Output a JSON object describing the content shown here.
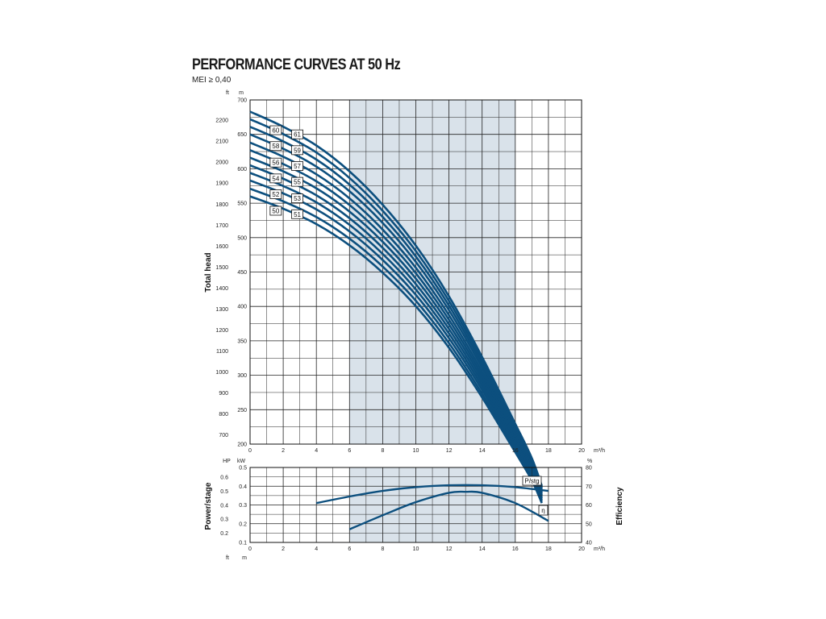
{
  "chart_data": [
    {
      "type": "line",
      "title": "PERFORMANCE CURVES AT 50 Hz",
      "subtitle": "MEI ≥ 0,40",
      "ylabel": "Total head",
      "y_unit_left": "ft",
      "y_unit_right": "m",
      "x_unit": "m³/h",
      "xlim": [
        0,
        20
      ],
      "ylim": [
        200,
        700
      ],
      "x_ticks": [
        0,
        2,
        4,
        6,
        8,
        10,
        12,
        14,
        16,
        18,
        20
      ],
      "y_ticks_m": [
        200,
        250,
        300,
        350,
        400,
        450,
        500,
        550,
        600,
        650,
        700
      ],
      "y_ticks_ft": [
        700,
        800,
        900,
        1000,
        1100,
        1200,
        1300,
        1400,
        1500,
        1600,
        1700,
        1800,
        1900,
        2000,
        2100,
        2200
      ],
      "grid": true,
      "shaded_x_range": [
        6,
        16
      ],
      "curve_x": [
        0,
        2,
        4,
        6,
        8,
        10,
        12,
        14,
        16,
        17,
        17.6
      ],
      "curve_fraction": [
        1.0,
        0.968,
        0.928,
        0.873,
        0.802,
        0.715,
        0.607,
        0.478,
        0.336,
        0.263,
        0.204
      ],
      "series": [
        {
          "name": "50",
          "shutoff_head": 560
        },
        {
          "name": "51",
          "shutoff_head": 571
        },
        {
          "name": "52",
          "shutoff_head": 583
        },
        {
          "name": "53",
          "shutoff_head": 594
        },
        {
          "name": "54",
          "shutoff_head": 605
        },
        {
          "name": "55",
          "shutoff_head": 616
        },
        {
          "name": "56",
          "shutoff_head": 627
        },
        {
          "name": "57",
          "shutoff_head": 638
        },
        {
          "name": "58",
          "shutoff_head": 650
        },
        {
          "name": "59",
          "shutoff_head": 661
        },
        {
          "name": "60",
          "shutoff_head": 672
        },
        {
          "name": "61",
          "shutoff_head": 683
        }
      ],
      "stage_labels": [
        {
          "text": "60",
          "x": 1.55,
          "y": 656
        },
        {
          "text": "61",
          "x": 2.85,
          "y": 650
        },
        {
          "text": "58",
          "x": 1.55,
          "y": 633
        },
        {
          "text": "59",
          "x": 2.85,
          "y": 627
        },
        {
          "text": "56",
          "x": 1.55,
          "y": 609
        },
        {
          "text": "57",
          "x": 2.85,
          "y": 604
        },
        {
          "text": "54",
          "x": 1.55,
          "y": 586
        },
        {
          "text": "55",
          "x": 2.85,
          "y": 581
        },
        {
          "text": "52",
          "x": 1.55,
          "y": 563
        },
        {
          "text": "53",
          "x": 2.85,
          "y": 557
        },
        {
          "text": "50",
          "x": 1.55,
          "y": 539
        },
        {
          "text": "51",
          "x": 2.85,
          "y": 534
        }
      ]
    },
    {
      "type": "line",
      "ylabel_left": "Power/stage",
      "ylabel_right": "Efficiency",
      "y_unit_left_hp": "HP",
      "y_unit_left_kw": "kW",
      "y_unit_right": "%",
      "x_unit": "m³/h",
      "xlim": [
        0,
        20
      ],
      "ylim_kw": [
        0.1,
        0.5
      ],
      "ylim_pct": [
        40,
        80
      ],
      "x_ticks": [
        0,
        2,
        4,
        6,
        8,
        10,
        12,
        14,
        16,
        18,
        20
      ],
      "y_ticks_kw": [
        0.1,
        0.2,
        0.3,
        0.4,
        0.5
      ],
      "y_ticks_hp": [
        0.2,
        0.3,
        0.4,
        0.5,
        0.6
      ],
      "y_ticks_pct": [
        40,
        50,
        60,
        70,
        80
      ],
      "bottom_units_left": "ft",
      "bottom_units_right": "m",
      "grid": true,
      "shaded_x_range": [
        6,
        16
      ],
      "series": [
        {
          "name": "P/stg",
          "axis": "kW",
          "x": [
            4,
            6,
            8,
            10,
            12,
            14,
            16,
            18
          ],
          "y": [
            0.31,
            0.345,
            0.375,
            0.395,
            0.405,
            0.405,
            0.395,
            0.375
          ]
        },
        {
          "name": "η",
          "axis": "%",
          "x": [
            6,
            8,
            10,
            12,
            13,
            14,
            16,
            18
          ],
          "y": [
            47,
            54.5,
            61.5,
            66.5,
            67,
            66.5,
            61,
            51.5
          ]
        }
      ]
    }
  ]
}
